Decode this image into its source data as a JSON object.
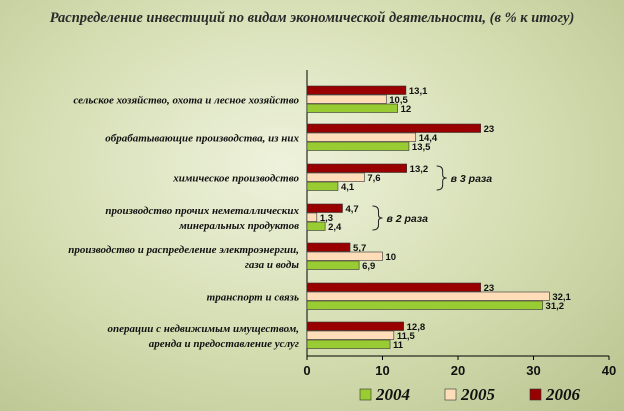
{
  "chart_data": {
    "type": "bar",
    "orientation": "horizontal",
    "title": "Распределение инвестиций по видам экономической деятельности, (в % к итогу)",
    "categories": [
      [
        "сельское хозяйство, охота и лесное хозяйство"
      ],
      [
        "обрабатывающие производства, из них"
      ],
      [
        "химическое производство"
      ],
      [
        "производство прочих неметаллических",
        "минеральных продуктов"
      ],
      [
        "производство и распределение электроэнергии,",
        "газа и воды"
      ],
      [
        "транспорт и связь"
      ],
      [
        "операции с  недвижимым имуществом,",
        "аренда и предоставление услуг"
      ]
    ],
    "series": [
      {
        "name": "2004",
        "color": "#99cc33",
        "values": [
          12,
          13.5,
          4.1,
          2.4,
          6.9,
          31.2,
          11
        ]
      },
      {
        "name": "2005",
        "color": "#ffddb8",
        "values": [
          10.5,
          14.4,
          7.6,
          1.3,
          10,
          32.1,
          11.5
        ]
      },
      {
        "name": "2006",
        "color": "#990000",
        "values": [
          13.1,
          23,
          13.2,
          4.7,
          5.7,
          23,
          12.8
        ]
      }
    ],
    "value_labels": [
      [
        "12",
        "13,5",
        "4,1",
        "2,4",
        "6,9",
        "31,2",
        "11"
      ],
      [
        "10,5",
        "14,4",
        "7,6",
        "1,3",
        "10",
        "32,1",
        "11,5"
      ],
      [
        "13,1",
        "23",
        "13,2",
        "4,7",
        "5,7",
        "23",
        "12,8"
      ]
    ],
    "xlim": [
      0,
      40
    ],
    "xticks": [
      0,
      10,
      20,
      30,
      40
    ],
    "grid": false,
    "legend_position": "bottom",
    "annotations": [
      {
        "text": "в 3 раза",
        "category_index": 2
      },
      {
        "text": "в 2 раза",
        "category_index": 3
      }
    ]
  }
}
